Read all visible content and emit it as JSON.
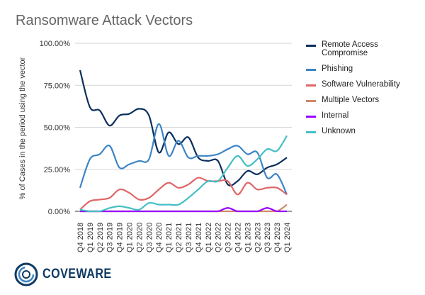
{
  "chart_data": {
    "type": "line",
    "title": "Ransomware Attack Vectors",
    "xlabel": "",
    "ylabel": "% of Cases in the period using the vector",
    "ylim": [
      0,
      100
    ],
    "yticks": [
      "0.00%",
      "25.00%",
      "50.00%",
      "75.00%",
      "100.00%"
    ],
    "grid": true,
    "legend_position": "right",
    "categories": [
      "Q4 2018",
      "Q1 2019",
      "Q2 2019",
      "Q3 2019",
      "Q4 2019",
      "Q1 2020",
      "Q2 2020",
      "Q3 2020",
      "Q4 2020",
      "Q1 2021",
      "Q2 2021",
      "Q3 2021",
      "Q4 2021",
      "Q1 2022",
      "Q2 2022",
      "Q3 2022",
      "Q4 2022",
      "Q1 2023",
      "Q2 2023",
      "Q3 2023",
      "Q4 2023",
      "Q1 2024"
    ],
    "series": [
      {
        "name": "Remote Access Compromise",
        "color": "#0b2f5e",
        "values": [
          84,
          62,
          60,
          51,
          57,
          58,
          61,
          57,
          35,
          47,
          40,
          44,
          32,
          30,
          30,
          16,
          18,
          24,
          22,
          26,
          28,
          32
        ]
      },
      {
        "name": "Phishing",
        "color": "#3d85c6",
        "values": [
          14,
          31,
          34,
          39,
          26,
          28,
          30,
          31,
          52,
          33,
          42,
          32,
          33,
          33,
          34,
          37,
          39,
          34,
          35,
          20,
          22,
          10
        ]
      },
      {
        "name": "Software Vulnerability",
        "color": "#e06666",
        "values": [
          1,
          6,
          7,
          8,
          13,
          11,
          7,
          8,
          13,
          17,
          14,
          16,
          20,
          18,
          18,
          18,
          10,
          17,
          13,
          14,
          14,
          10
        ]
      },
      {
        "name": "Multiple Vectors",
        "color": "#d0896b",
        "values": [
          0,
          0,
          0,
          0,
          0,
          0,
          0,
          0,
          0,
          0,
          0,
          0,
          0,
          0,
          0,
          0,
          0,
          0,
          0,
          0,
          0,
          4
        ]
      },
      {
        "name": "Internal",
        "color": "#9900ff",
        "values": [
          0,
          0,
          0,
          0,
          0,
          0,
          0,
          0,
          0,
          0,
          0,
          0,
          0,
          0,
          0,
          2,
          0,
          0,
          0,
          2,
          0,
          0
        ]
      },
      {
        "name": "Unknown",
        "color": "#45bfc4",
        "values": [
          1,
          0,
          0,
          2,
          3,
          2,
          1,
          5,
          4,
          4,
          4,
          8,
          13,
          18,
          18,
          26,
          33,
          27,
          31,
          37,
          36,
          45
        ]
      }
    ]
  },
  "logo": {
    "text": "COVEWARE"
  }
}
